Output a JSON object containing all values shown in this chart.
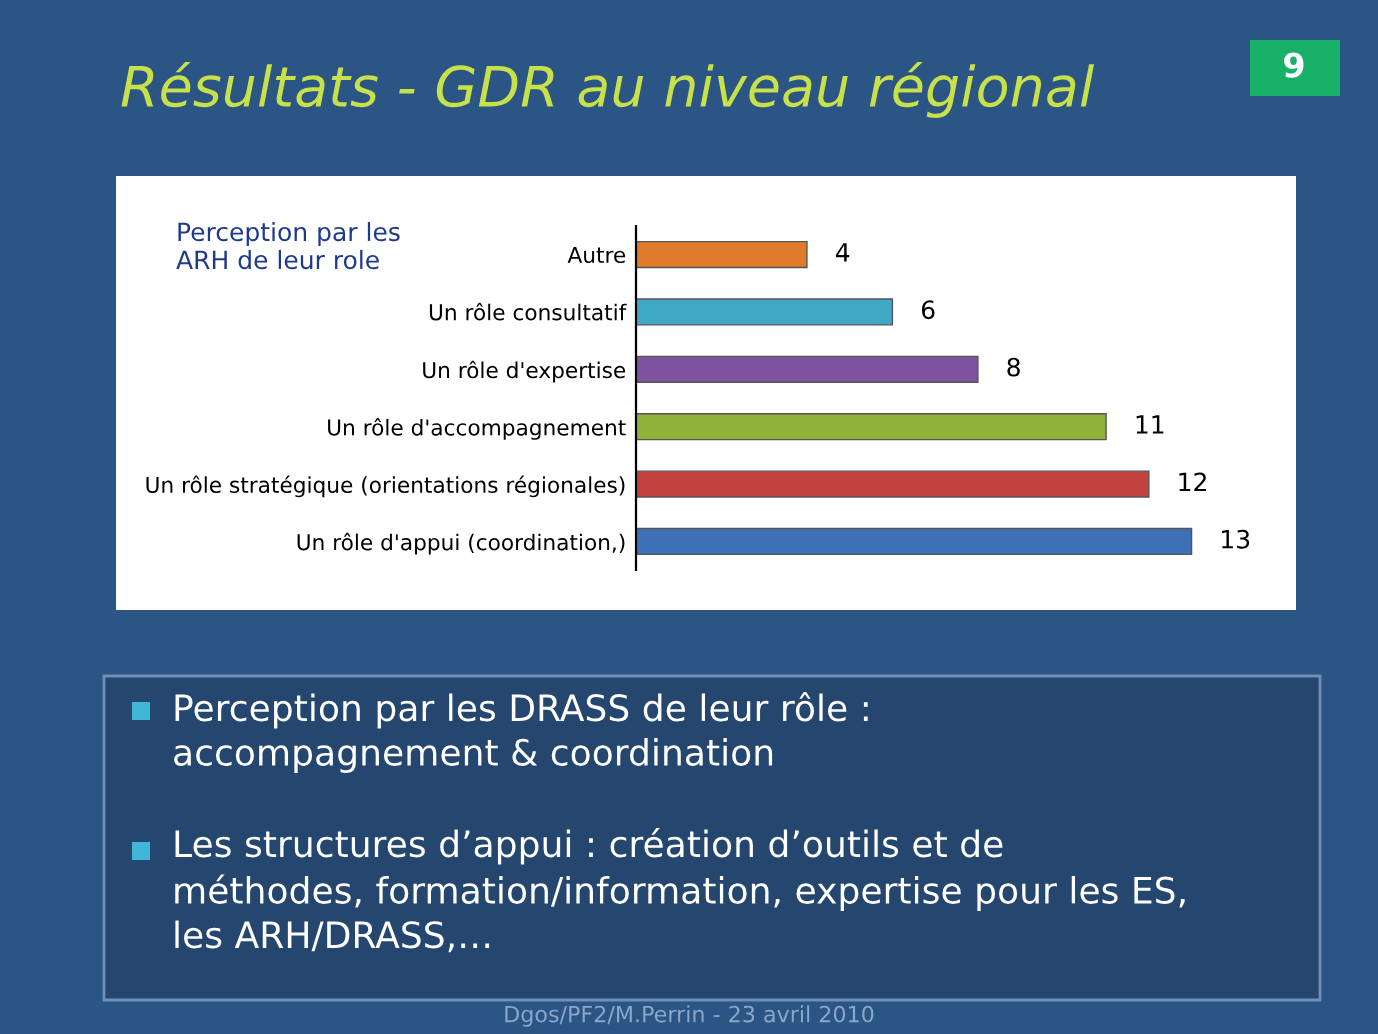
{
  "chart_data": {
    "type": "bar",
    "orientation": "horizontal",
    "data_labels": true,
    "title": "Résultats - GDR au niveau régional",
    "subtitle": "Perception par les\nARH de leur role",
    "categories": [
      "Autre",
      "Un rôle consultatif",
      "Un rôle d'expertise",
      "Un rôle d'accompagnement",
      "Un rôle stratégique (orientations régionales)",
      "Un rôle d'appui (coordination,)"
    ],
    "values": [
      4,
      6,
      8,
      11,
      12,
      13
    ],
    "colors": [
      "#e07b2a",
      "#3fa9c4",
      "#7f52a0",
      "#8fb23a",
      "#c0413d",
      "#3e70b8"
    ],
    "annotations": [
      "9",
      "Perception par les DRASS de leur rôle :\naccompagnement & coordination",
      "Les structures d’appui : création d’outils et de\nméthodes, formation/information, expertise pour les ES,\nles ARH/DRASS,…",
      "Dgos/PF2/M.Perrin - 23 avril 2010"
    ],
    "grid": false,
    "legend": false
  }
}
